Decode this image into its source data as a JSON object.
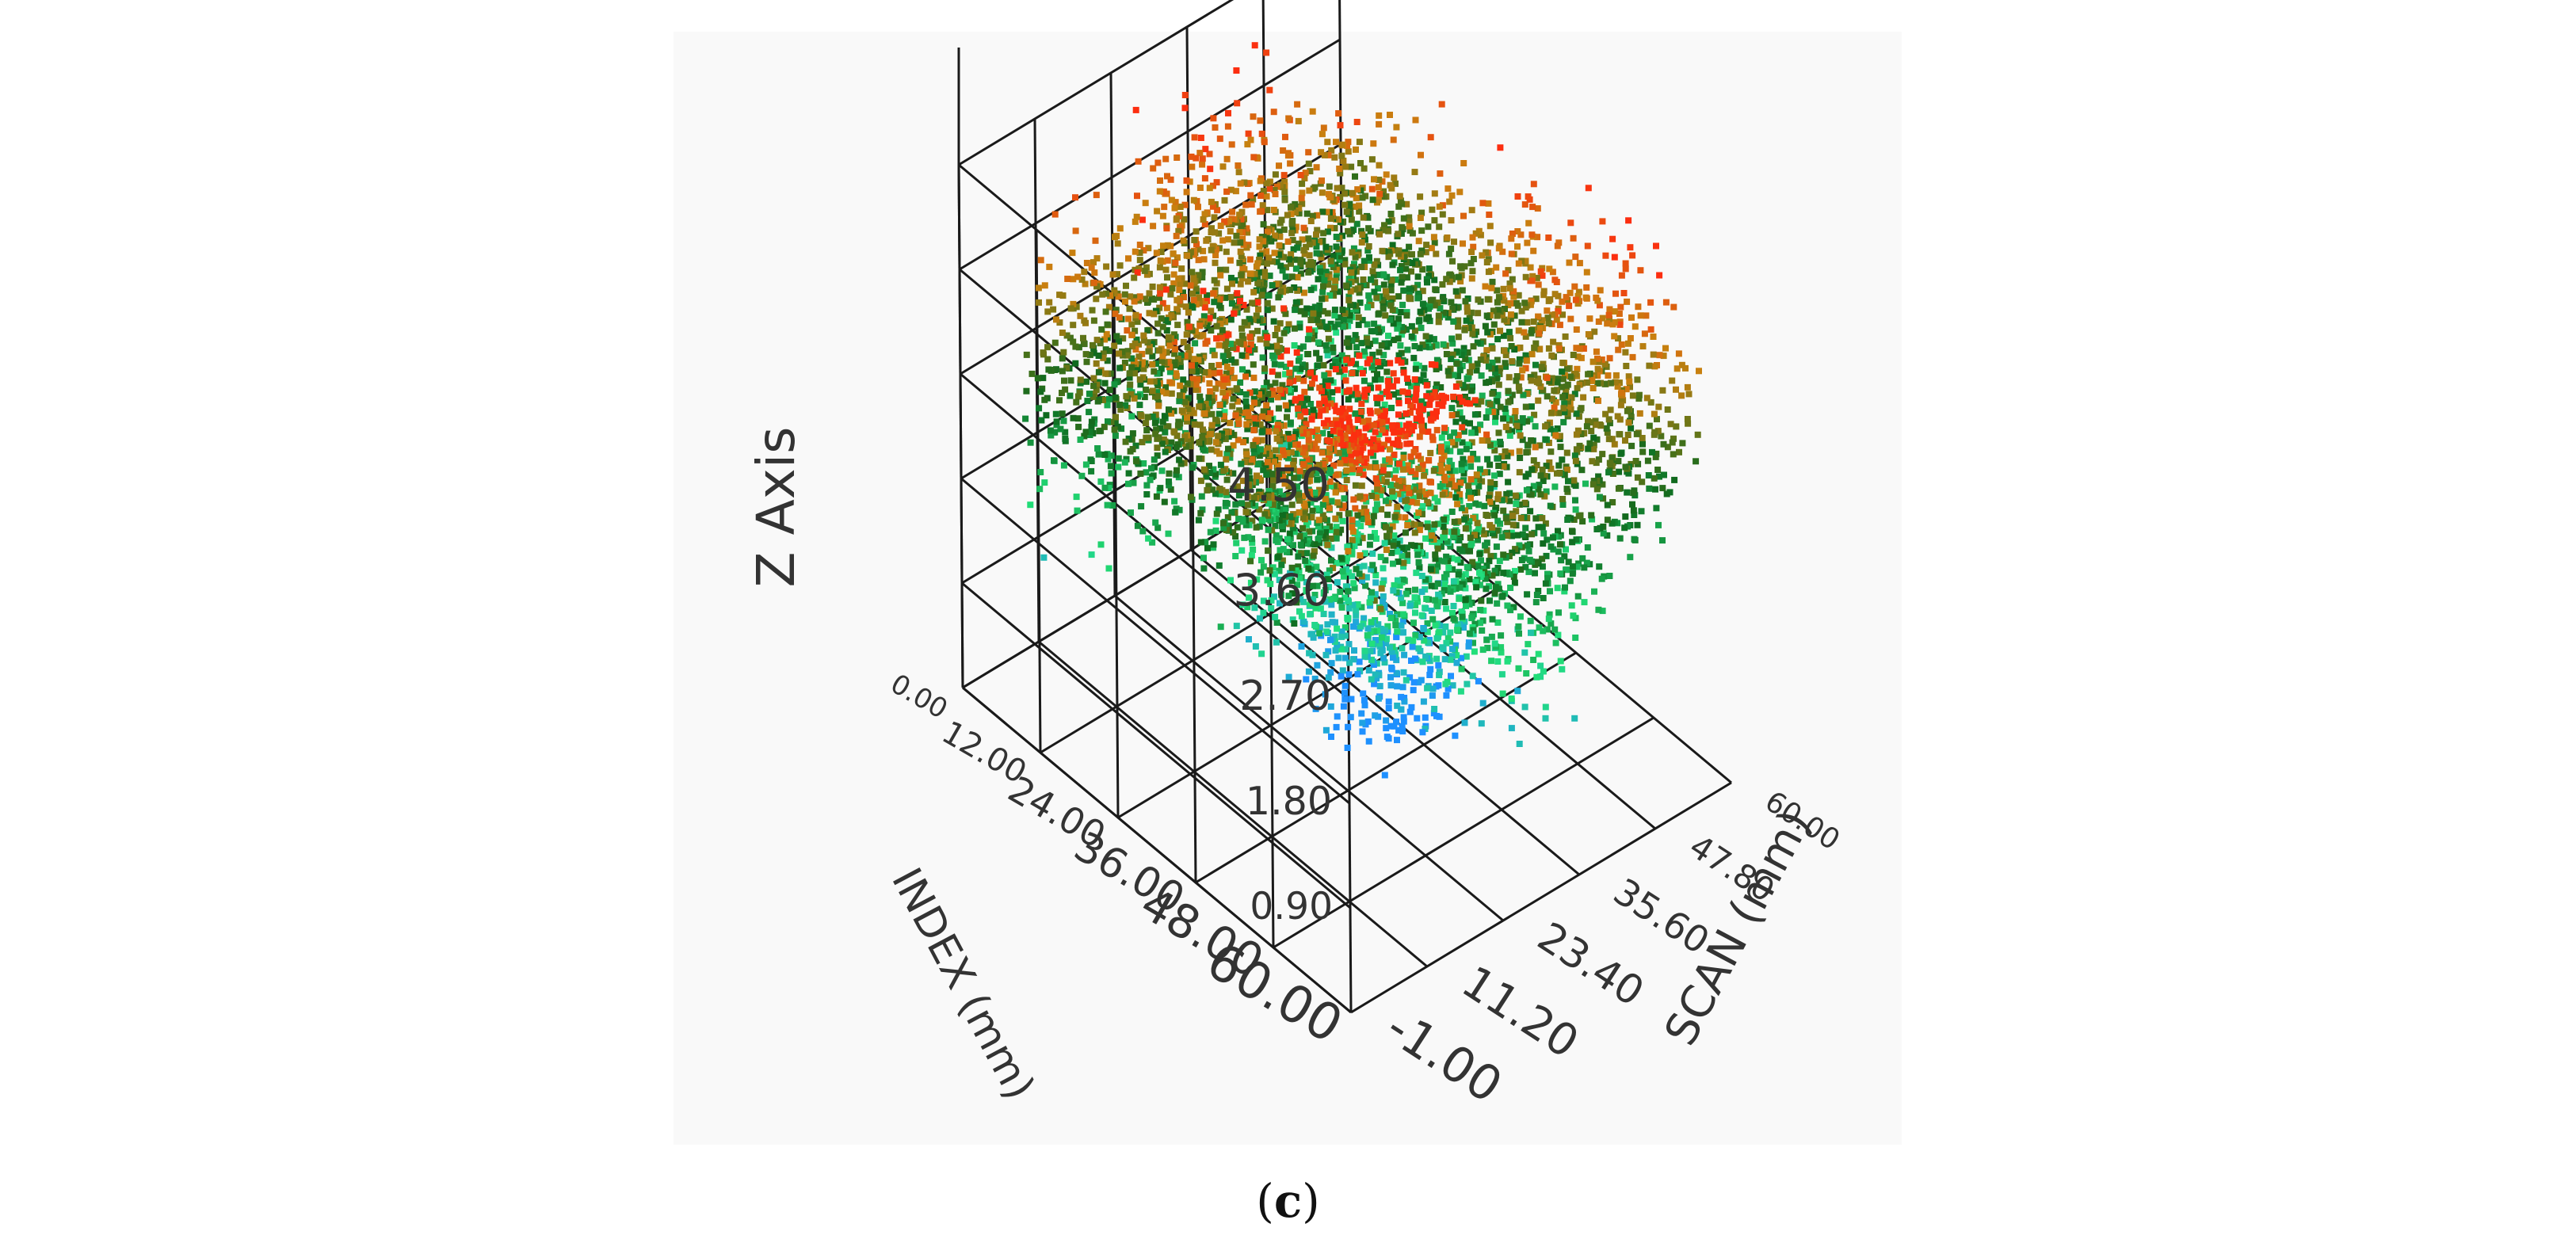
{
  "chart_data": {
    "type": "scatter3d",
    "title": "",
    "axes": {
      "x": {
        "label": "INDEX (mm)",
        "range": [
          0,
          60
        ],
        "ticks": [
          "0.00",
          "12.00",
          "24.00",
          "36.00",
          "48.00",
          "60.00"
        ]
      },
      "y": {
        "label": "SCAN (mm)",
        "range": [
          -1,
          60
        ],
        "ticks": [
          "-1.00",
          "11.20",
          "23.40",
          "35.60",
          "47.80",
          "60.00"
        ]
      },
      "z": {
        "label": "Z Axis",
        "range": [
          0,
          4.5
        ],
        "ticks": [
          "0.90",
          "1.80",
          "2.70",
          "3.60",
          "4.50"
        ]
      }
    },
    "grid": true,
    "colorscale": [
      "#1e90ff",
      "#22e07a",
      "#0f6a1e",
      "#c8800f",
      "#ff2a10"
    ],
    "description_points": [
      {
        "x": 50,
        "y": 32,
        "z": 2.4
      },
      {
        "x": 55,
        "y": 12,
        "z": 4.4
      },
      {
        "x": 44,
        "y": 48,
        "z": 3.2
      },
      {
        "x": 38,
        "y": 10,
        "z": 3.4
      },
      {
        "x": 22,
        "y": 28,
        "z": 3.6
      },
      {
        "x": 12,
        "y": 44,
        "z": 3.0
      },
      {
        "x": 10,
        "y": 54,
        "z": 2.3
      },
      {
        "x": 6,
        "y": 10,
        "z": 2.8
      },
      {
        "x": 36,
        "y": 30,
        "z": 0.6
      },
      {
        "x": 30,
        "y": 28,
        "z": 0.8
      },
      {
        "x": 20,
        "y": 50,
        "z": 2.6
      }
    ]
  },
  "caption": {
    "open": "(",
    "letter": "c",
    "close": ")"
  }
}
